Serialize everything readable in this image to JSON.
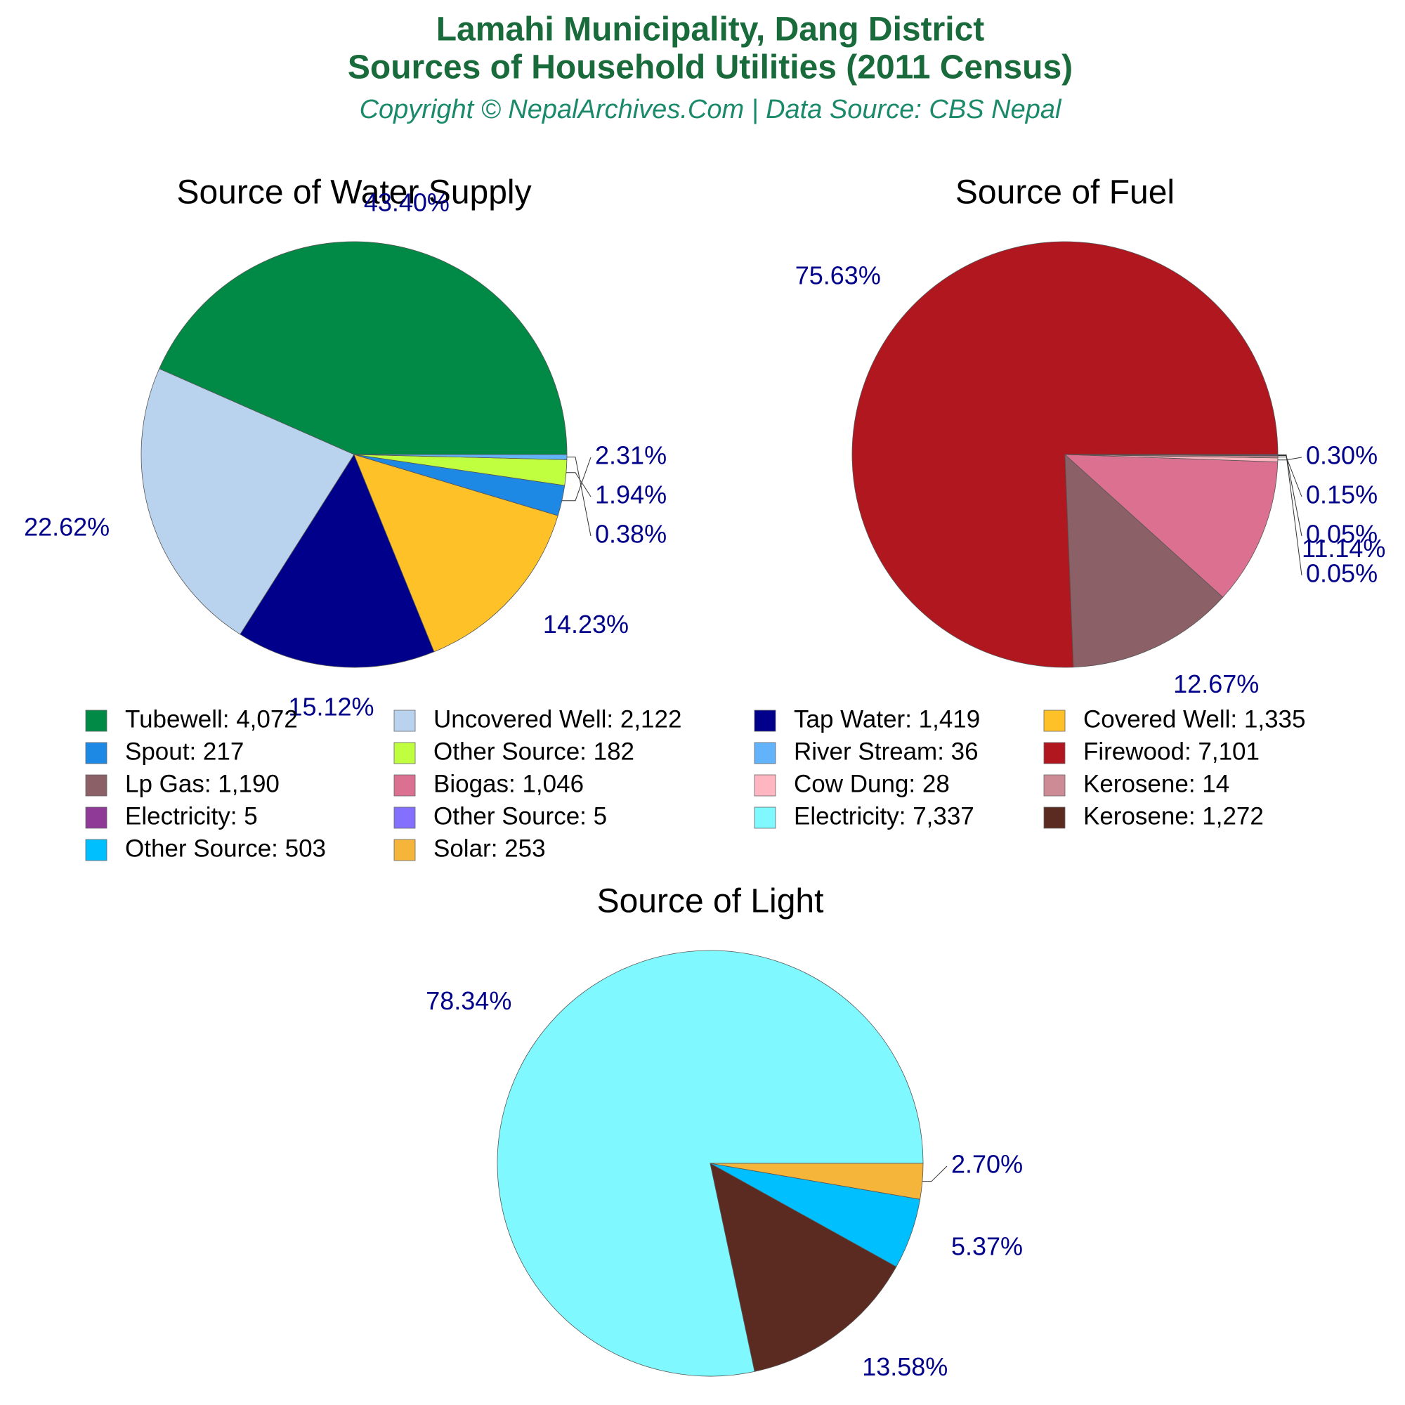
{
  "header": {
    "title_lines": [
      "Lamahi Municipality, Dang District",
      "Sources of Household Utilities (2011 Census)"
    ],
    "subtitle": "Copyright © NepalArchives.Com | Data Source: CBS Nepal"
  },
  "chart_data": [
    {
      "type": "pie",
      "title": "Source of Water Supply",
      "categories": [
        "Tubewell",
        "Uncovered Well",
        "Tap Water",
        "Covered Well",
        "Spout",
        "Other Source",
        "River Stream"
      ],
      "values": [
        4072,
        2122,
        1419,
        1335,
        217,
        182,
        36
      ],
      "legend_labels": [
        "Tubewell: 4,072",
        "Uncovered Well: 2,122",
        "Tap Water: 1,419",
        "Covered Well: 1,335",
        "Spout: 217",
        "Other Source: 182",
        "River Stream: 36"
      ],
      "percent_labels": [
        "43.40%",
        "22.62%",
        "15.12%",
        "14.23%",
        "2.31%",
        "1.94%",
        "0.38%"
      ],
      "colors": [
        "#008a45",
        "#b9d3ee",
        "#00008b",
        "#fec128",
        "#1e88e5",
        "#bfff3f",
        "#63b3fb"
      ]
    },
    {
      "type": "pie",
      "title": "Source of Fuel",
      "categories": [
        "Firewood",
        "Lp Gas",
        "Biogas",
        "Cow Dung",
        "Kerosene",
        "Electricity",
        "Other Source"
      ],
      "values": [
        7101,
        1190,
        1046,
        28,
        14,
        5,
        5
      ],
      "legend_labels": [
        "Firewood: 7,101",
        "Lp Gas: 1,190",
        "Biogas: 1,046",
        "Cow Dung: 28",
        "Kerosene: 14",
        "Electricity: 5",
        "Other Source: 5"
      ],
      "percent_labels": [
        "75.63%",
        "12.67%",
        "11.14%",
        "0.30%",
        "0.15%",
        "0.05%",
        "0.05%"
      ],
      "colors": [
        "#b0171f",
        "#8b6067",
        "#dc7090",
        "#ffb6c1",
        "#cd8c95",
        "#8e3a96",
        "#8470ff"
      ]
    },
    {
      "type": "pie",
      "title": "Source of Light",
      "categories": [
        "Electricity",
        "Kerosene",
        "Other Source",
        "Solar"
      ],
      "values": [
        7337,
        1272,
        503,
        253
      ],
      "legend_labels": [
        "Electricity: 7,337",
        "Kerosene: 1,272",
        "Other Source: 503",
        "Solar: 253"
      ],
      "percent_labels": [
        "78.34%",
        "13.58%",
        "5.37%",
        "2.70%"
      ],
      "colors": [
        "#7ff9ff",
        "#5b2a20",
        "#00bfff",
        "#f5b43a"
      ]
    }
  ]
}
